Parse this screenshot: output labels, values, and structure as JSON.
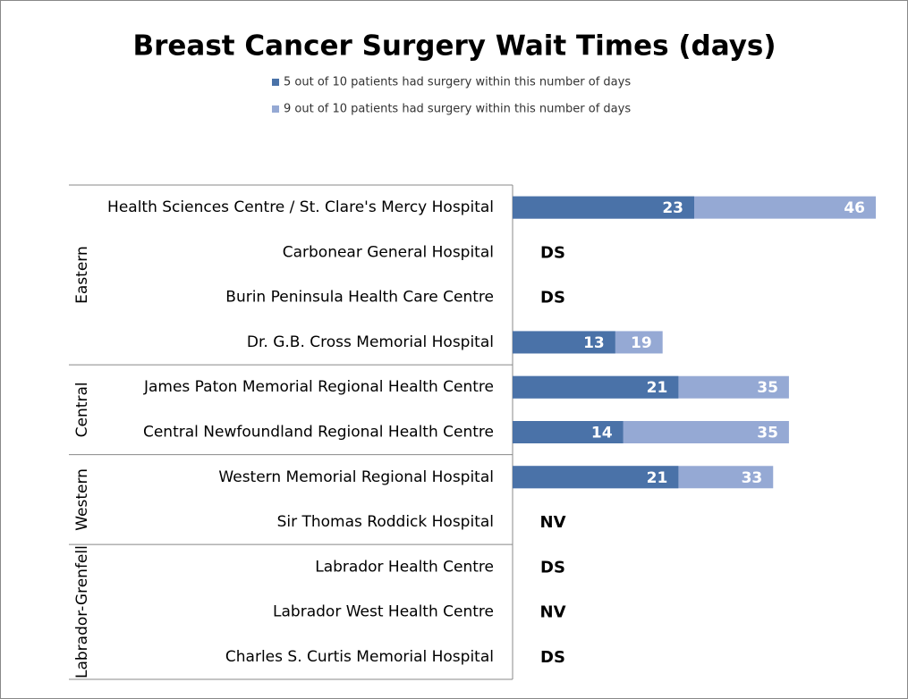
{
  "chart_data": {
    "type": "bar",
    "orientation": "horizontal",
    "title": "Breast Cancer Surgery Wait Times (days)",
    "groups": [
      {
        "name": "Eastern",
        "categories": [
          "Health Sciences Centre / St. Clare's Mercy Hospital",
          "Carbonear General Hospital",
          "Burin Peninsula Health Care Centre",
          "Dr. G.B. Cross Memorial Hospital"
        ]
      },
      {
        "name": "Central",
        "categories": [
          "James Paton Memorial Regional Health Centre",
          "Central Newfoundland Regional Health Centre"
        ]
      },
      {
        "name": "Western",
        "categories": [
          "Western Memorial Regional Hospital",
          "Sir Thomas Roddick Hospital"
        ]
      },
      {
        "name": "Labrador-Grenfell",
        "categories": [
          "Labrador Health Centre",
          "Labrador West Health Centre",
          "Charles S. Curtis Memorial Hospital"
        ]
      }
    ],
    "series": [
      {
        "name": "5 out of 10 patients had surgery within this number of days",
        "color": "#4a72a8",
        "values": [
          23,
          null,
          null,
          13,
          21,
          14,
          21,
          null,
          null,
          null,
          null
        ],
        "value_labels": [
          null,
          "DS",
          "DS",
          null,
          null,
          null,
          null,
          "NV",
          "DS",
          "NV",
          "DS"
        ]
      },
      {
        "name": "9 out of 10 patients had surgery within this number of days",
        "color": "#95a9d4",
        "values": [
          46,
          null,
          null,
          19,
          35,
          35,
          33,
          null,
          null,
          null,
          null
        ]
      }
    ]
  }
}
